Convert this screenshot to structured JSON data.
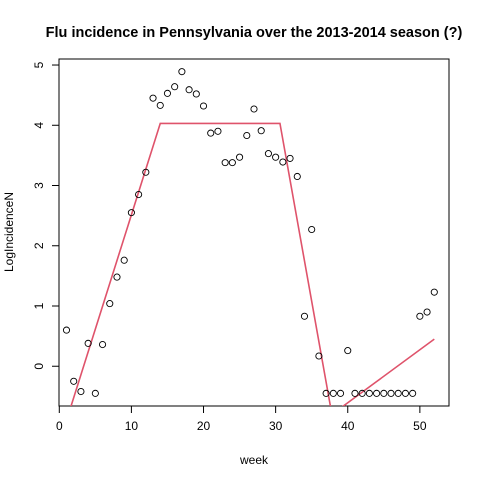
{
  "chart_data": {
    "type": "scatter",
    "title": "Flu incidence in Pennsylvania over the 2013-2014 season (?)",
    "xlabel": "week",
    "ylabel": "LogIncidenceN",
    "xlim": [
      -0.04,
      54.04
    ],
    "ylim": [
      -0.66,
      5.1
    ],
    "x_ticks": [
      0,
      10,
      20,
      30,
      40,
      50
    ],
    "y_ticks": [
      0,
      1,
      2,
      3,
      4,
      5
    ],
    "grid": false,
    "colors": {
      "points": "#000000",
      "fit_line": "#DF536B"
    },
    "series": [
      {
        "type": "scatter",
        "x": [
          1,
          2,
          3,
          4,
          5,
          6,
          7,
          8,
          9,
          10,
          11,
          12,
          13,
          14,
          15,
          16,
          17,
          18,
          19,
          20,
          21,
          22,
          23,
          24,
          25,
          26,
          27,
          28,
          29,
          30,
          31,
          32,
          33,
          34,
          35,
          36,
          37,
          38,
          39,
          40,
          41,
          42,
          43,
          44,
          45,
          46,
          47,
          48,
          49,
          50,
          51,
          52
        ],
        "y": [
          0.6,
          -0.25,
          -0.42,
          0.38,
          -0.45,
          0.36,
          1.04,
          1.48,
          1.76,
          2.55,
          2.85,
          3.22,
          4.45,
          4.33,
          4.53,
          4.64,
          4.89,
          4.59,
          4.52,
          4.32,
          3.87,
          3.9,
          3.38,
          3.38,
          3.47,
          3.83,
          4.27,
          3.91,
          3.53,
          3.47,
          3.39,
          3.45,
          3.15,
          0.83,
          2.27,
          0.17,
          -0.45,
          -0.45,
          -0.45,
          0.26,
          -0.45,
          -0.45,
          -0.45,
          -0.45,
          -0.45,
          -0.45,
          -0.45,
          -0.45,
          -0.45,
          0.83,
          0.9,
          1.23
        ]
      },
      {
        "type": "line",
        "x": [
          1,
          14,
          30.6,
          37.8,
          52
        ],
        "y": [
          -0.9,
          4.03,
          4.03,
          -0.8,
          0.45
        ]
      }
    ]
  }
}
